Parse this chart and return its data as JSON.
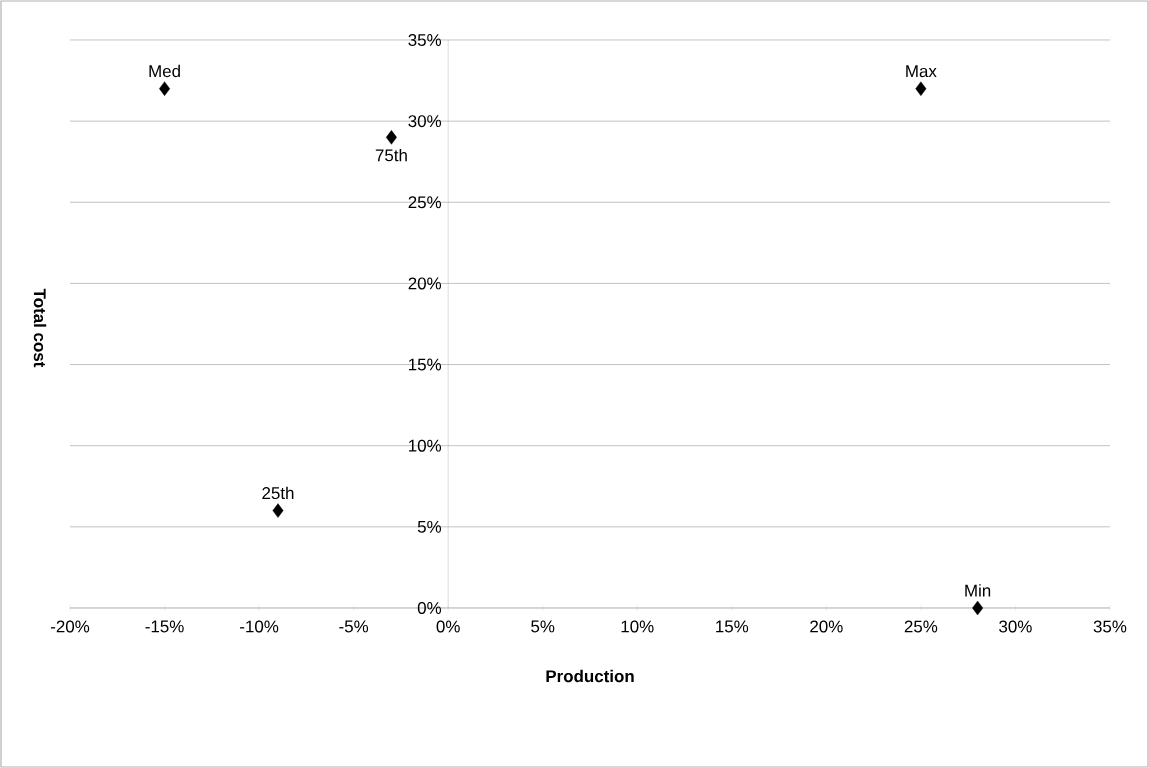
{
  "chart_data": {
    "type": "scatter",
    "xlabel": "Production",
    "ylabel": "Total cost",
    "x": [
      -15,
      -3,
      -9,
      25,
      28
    ],
    "values": [
      32,
      29,
      6,
      32,
      0
    ],
    "color": "#000000",
    "marker": "diamond",
    "grid": "y",
    "xlim": [
      -20,
      35
    ],
    "ylim": [
      0,
      35
    ],
    "xticks": [
      {
        "value": -20,
        "label": "-20%"
      },
      {
        "value": -15,
        "label": "-15%"
      },
      {
        "value": -10,
        "label": "-10%"
      },
      {
        "value": -5,
        "label": "-5%"
      },
      {
        "value": 0,
        "label": "0%"
      },
      {
        "value": 5,
        "label": "5%"
      },
      {
        "value": 10,
        "label": "10%"
      },
      {
        "value": 15,
        "label": "15%"
      },
      {
        "value": 20,
        "label": "20%"
      },
      {
        "value": 25,
        "label": "25%"
      },
      {
        "value": 30,
        "label": "30%"
      },
      {
        "value": 35,
        "label": "35%"
      }
    ],
    "yticks": [
      {
        "value": 0,
        "label": "0%"
      },
      {
        "value": 5,
        "label": "5%"
      },
      {
        "value": 10,
        "label": "10%"
      },
      {
        "value": 15,
        "label": "15%"
      },
      {
        "value": 20,
        "label": "20%"
      },
      {
        "value": 25,
        "label": "25%"
      },
      {
        "value": 30,
        "label": "30%"
      },
      {
        "value": 35,
        "label": "35%"
      }
    ],
    "annotations": [
      {
        "text": "Med",
        "x": -15,
        "y": 32
      },
      {
        "text": "75th",
        "x": -3,
        "y": 29
      },
      {
        "text": "25th",
        "x": -9,
        "y": 6
      },
      {
        "text": "Max",
        "x": 25,
        "y": 32
      },
      {
        "text": "Min",
        "x": 28,
        "y": 0
      }
    ]
  }
}
